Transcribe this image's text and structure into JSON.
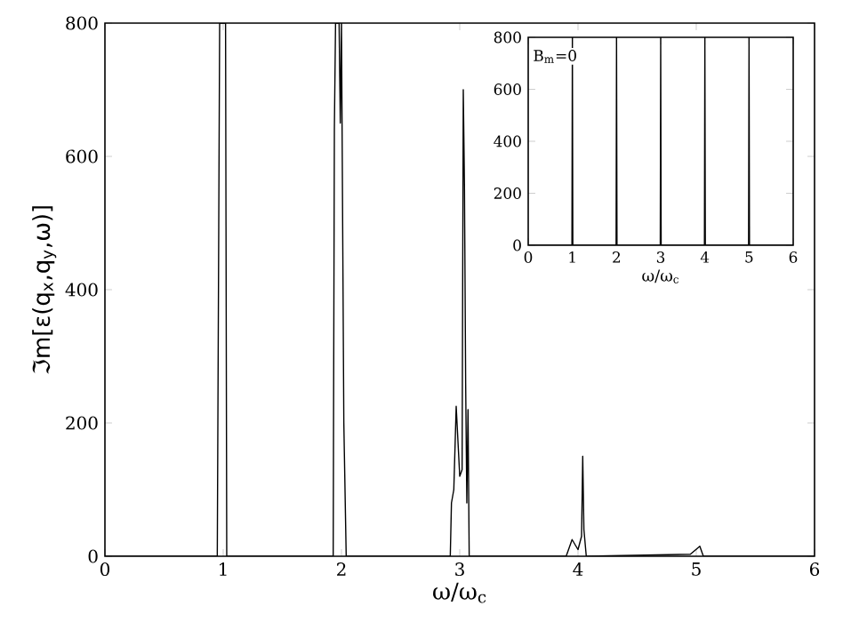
{
  "chart_data": [
    {
      "type": "line",
      "xlabel": "ω/ω$_{c}$",
      "ylabel": "ℑm[ε(q$_{x}$,q$_{y}$,ω)]",
      "xlim": [
        0,
        6
      ],
      "ylim": [
        0,
        800
      ],
      "xticks": [
        0,
        1,
        2,
        3,
        4,
        5,
        6
      ],
      "yticks": [
        0,
        200,
        400,
        600,
        800
      ],
      "grid": false,
      "marker": "none",
      "line_style": "solid",
      "series": [
        {
          "color": "#000000",
          "x": [
            0,
            0.95,
            0.97,
            1.02,
            1.03,
            1.93,
            1.94,
            1.95,
            1.98,
            1.99,
            2.0,
            2.02,
            2.04,
            2.92,
            2.93,
            2.95,
            2.97,
            3.0,
            3.02,
            3.03,
            3.04,
            3.05,
            3.06,
            3.07,
            3.08,
            3.9,
            3.95,
            4.0,
            4.03,
            4.04,
            4.05,
            4.07,
            4.95,
            5.03,
            5.06,
            6
          ],
          "values": [
            0,
            0,
            800,
            800,
            0,
            0,
            640,
            800,
            800,
            650,
            800,
            200,
            0,
            0,
            80,
            100,
            225,
            120,
            130,
            700,
            555,
            260,
            80,
            220,
            0,
            0,
            25,
            10,
            30,
            150,
            40,
            0,
            3,
            15,
            0,
            0
          ]
        }
      ]
    },
    {
      "type": "line",
      "xlabel": "ω/ω$_{c}$",
      "xlim": [
        0,
        6
      ],
      "ylim": [
        0,
        800
      ],
      "xticks": [
        0,
        1,
        2,
        3,
        4,
        5,
        6
      ],
      "yticks": [
        0,
        200,
        400,
        600,
        800
      ],
      "grid": false,
      "marker": "none",
      "line_style": "solid",
      "annotations": [
        "B$_{m}$=0"
      ],
      "series": [
        {
          "color": "#000000",
          "x": [
            0,
            0.99,
            1,
            1.01,
            1.99,
            2,
            2.01,
            2.99,
            3,
            3.01,
            3.99,
            4,
            4.01,
            4.99,
            5,
            5.01,
            6
          ],
          "values": [
            0,
            0,
            800,
            0,
            0,
            800,
            0,
            0,
            800,
            0,
            0,
            800,
            0,
            0,
            800,
            0,
            0
          ]
        }
      ]
    }
  ]
}
